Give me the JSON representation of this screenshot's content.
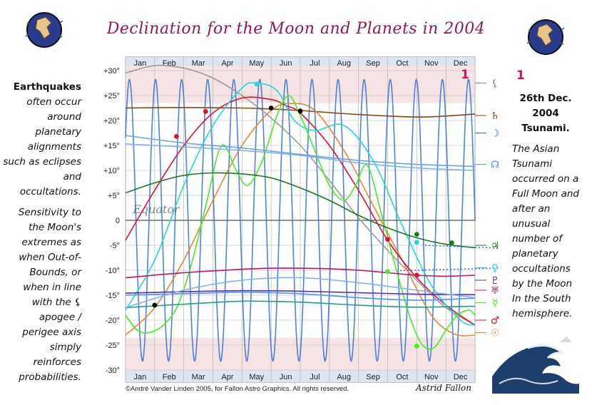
{
  "title": "Declination for the Moon and Planets in 2004",
  "left_text": {
    "p1_bold": "Earthquakes",
    "p1_rest": "often occur around planetary alignments such as eclipses and occultations.",
    "p2": "Sensitivity to the Moon's extremes as when Out-of-Bounds, or when in line with the",
    "p2_glyph": "⚸",
    "p2_end": "apogee / perigee axis simply reinforces probabilities."
  },
  "right_text": {
    "marker": "1",
    "date_bold": "26th Dec. 2004 Tsunami.",
    "body": "The Asian Tsunami occurred on a Full Moon and after an unusual number of planetary occultations by the Moon In the South hemisphere."
  },
  "copyright": "©André Vander Linden 2005, for Fallon Astro Graphics. All rights reserved.",
  "signature": "Astrid Fallon",
  "chart_data": {
    "type": "line",
    "title": "Declination for the Moon and Planets in 2004",
    "x_unit": "month of 2004 (0 = 1 Jan, 12 = 31 Dec)",
    "xlim": [
      0,
      12
    ],
    "ylim": [
      -31,
      31
    ],
    "y_ticks": [
      "+30°",
      "+25°",
      "+20°",
      "+15°",
      "+10°",
      "+5°",
      "0",
      "-5°",
      "-10°",
      "-15°",
      "-20°",
      "-25°",
      "-30°"
    ],
    "y_tick_values": [
      30,
      25,
      20,
      15,
      10,
      5,
      0,
      -5,
      -10,
      -15,
      -20,
      -25,
      -30
    ],
    "months": [
      "Jan",
      "Feb",
      "Mar",
      "Apr",
      "May",
      "Jun",
      "Jul",
      "Aug",
      "Sep",
      "Oct",
      "Nov",
      "Dec"
    ],
    "annotation": "Equator",
    "marker_label": "1",
    "grid": true,
    "moon": {
      "color": "#2f6fd6",
      "amplitude": 28.2,
      "cycles": 13.4,
      "phase": 0.1
    },
    "series": [
      {
        "glyph": "⚸",
        "color": "#9a9a9a",
        "x": [
          0,
          1,
          2,
          3,
          4,
          5,
          6,
          7,
          8,
          9,
          10,
          11,
          12
        ],
        "y": [
          29.5,
          31,
          30.5,
          28.5,
          25,
          20.5,
          15,
          8,
          0.5,
          -6,
          -12,
          -17.5,
          -21
        ]
      },
      {
        "glyph": "♄",
        "color": "#8b4513",
        "x": [
          0,
          2,
          4,
          5,
          6,
          8,
          10,
          11,
          12
        ],
        "y": [
          22.5,
          22.6,
          22.5,
          22.3,
          22,
          21.2,
          20.7,
          20.9,
          21.3
        ]
      },
      {
        "name": "Sun",
        "color": "#e8872a",
        "x": [
          0,
          1,
          2,
          3,
          4,
          5,
          5.7,
          6.5,
          7.5,
          8.5,
          9.5,
          10.5,
          11.3,
          12
        ],
        "y": [
          -23,
          -17.5,
          -8,
          4,
          15,
          22,
          23.4,
          22,
          14,
          3,
          -8,
          -19,
          -22.8,
          -23
        ]
      },
      {
        "name": "Mars",
        "color": "#dd1030",
        "x": [
          0,
          1,
          2,
          3,
          4,
          5,
          5.5,
          6,
          7,
          8,
          9,
          10,
          11,
          12
        ],
        "y": [
          -4,
          6,
          15,
          21.5,
          24.5,
          24.2,
          23,
          21.5,
          15,
          6,
          -4,
          -11.5,
          -17,
          -21
        ]
      },
      {
        "name": "Venus",
        "color": "#20d8d8",
        "x": [
          0,
          1,
          2,
          3,
          4,
          4.5,
          5.2,
          5.8,
          6.5,
          7.5,
          8.5,
          9.5,
          10.5,
          11.5,
          12
        ],
        "y": [
          -18,
          -8,
          7,
          19,
          26.5,
          27.5,
          26,
          20,
          18,
          19,
          12,
          -1,
          -13,
          -20,
          -21
        ]
      },
      {
        "name": "Mercury",
        "color": "#44ee22",
        "x": [
          0,
          0.4,
          0.8,
          1.3,
          1.8,
          2.3,
          2.8,
          3.3,
          3.8,
          4.2,
          4.7,
          5.2,
          5.6,
          6,
          6.5,
          7,
          7.5,
          7.9,
          8.3,
          8.8,
          9.3,
          9.8,
          10.2,
          10.6,
          11,
          11.4,
          11.8,
          12
        ],
        "y": [
          -19,
          -22,
          -22.5,
          -21,
          -17,
          -8,
          4,
          15,
          10,
          7,
          12,
          21,
          25,
          21,
          14,
          7,
          4,
          7,
          11,
          1,
          -10,
          -20,
          -25,
          -25.5,
          -22,
          -19,
          -18,
          -19
        ]
      },
      {
        "name": "Jupiter",
        "color": "#1a7a1a",
        "x": [
          0,
          1,
          2,
          3,
          4,
          5,
          6,
          7,
          8,
          9,
          10,
          11,
          12
        ],
        "y": [
          5.5,
          7.5,
          9,
          9.5,
          9.3,
          8.5,
          6.5,
          4,
          1,
          -1.5,
          -3.5,
          -4.8,
          -5.5
        ]
      },
      {
        "name": "Uranus",
        "color": "#c0146a",
        "x": [
          0,
          2,
          4,
          5,
          6,
          7,
          8,
          9,
          10,
          11,
          12
        ],
        "y": [
          -11.5,
          -10.5,
          -9.8,
          -9.6,
          -9.6,
          -9.7,
          -10,
          -10.5,
          -11,
          -11.2,
          -11
        ]
      },
      {
        "name": "Neptune",
        "color": "#5a2db5",
        "x": [
          0,
          2,
          4,
          6,
          8,
          10,
          12
        ],
        "y": [
          -14.6,
          -14.3,
          -14.1,
          -14.2,
          -14.5,
          -14.8,
          -14.9
        ]
      },
      {
        "name": "Pluto",
        "color": "#4a92ff",
        "x": [
          0,
          2,
          4,
          6,
          8,
          10,
          12
        ],
        "y": [
          -15,
          -14.7,
          -14.4,
          -14.7,
          -15.5,
          -16,
          -15.6
        ]
      },
      {
        "name": "Chiron",
        "color": "#1aa090",
        "x": [
          0,
          2,
          4,
          6,
          8,
          10,
          12
        ],
        "y": [
          -17.5,
          -16.8,
          -16.2,
          -16.4,
          -17,
          -17.4,
          -17.2
        ]
      },
      {
        "name": "Node",
        "color": "#6aa2e8",
        "x": [
          0,
          2,
          4,
          6,
          8,
          10,
          12
        ],
        "y": [
          17,
          15.5,
          14.5,
          13.2,
          12,
          11.2,
          10.8
        ]
      },
      {
        "name": "ref-upper",
        "color": "#7fb0ea",
        "x": [
          0,
          2,
          4,
          6,
          8,
          10,
          12
        ],
        "y": [
          15.3,
          14.7,
          14,
          13,
          11.5,
          10.5,
          10
        ]
      },
      {
        "name": "ref-lower",
        "color": "#7fb0ea",
        "x": [
          0,
          2,
          4,
          6,
          8,
          10,
          12
        ],
        "y": [
          -17.5,
          -14,
          -12,
          -11.5,
          -12.5,
          -14,
          -15.5
        ]
      }
    ],
    "right_glyphs": [
      {
        "glyph": "⚸",
        "color": "#888888",
        "y": 27.5
      },
      {
        "glyph": "♄",
        "color": "#8b4513",
        "y": 21
      },
      {
        "glyph": "☽",
        "color": "#2f6fd6",
        "y": 17.5
      },
      {
        "glyph": "☊",
        "color": "#4a92ff",
        "y": 11.2
      },
      {
        "glyph": "♃",
        "color": "#1a7a1a",
        "y": -5
      },
      {
        "glyph": "♀",
        "color": "#20d8d8",
        "y": -9.5
      },
      {
        "glyph": "♇",
        "color": "#5a2db5",
        "y": -12
      },
      {
        "glyph": "♅",
        "color": "#c0146a",
        "y": -14
      },
      {
        "glyph": "☿",
        "color": "#44ee22",
        "y": -16.5
      },
      {
        "glyph": "♂",
        "color": "#dd1030",
        "y": -20
      },
      {
        "glyph": "☉",
        "color": "#e8872a",
        "y": -22.5
      }
    ],
    "dots": [
      {
        "x": 1.75,
        "y": 16.8,
        "color": "#dd1030"
      },
      {
        "x": 2.75,
        "y": 21.8,
        "color": "#dd1030"
      },
      {
        "x": 5.0,
        "y": 22.5,
        "color": "#000000"
      },
      {
        "x": 6.0,
        "y": 21.9,
        "color": "#000000"
      },
      {
        "x": 4.5,
        "y": 27.3,
        "color": "#20d8d8"
      },
      {
        "x": 1.0,
        "y": -17,
        "color": "#000000"
      },
      {
        "x": 9.0,
        "y": -3.8,
        "color": "#dd1030"
      },
      {
        "x": 9.0,
        "y": -10.3,
        "color": "#44ee22"
      },
      {
        "x": 10.0,
        "y": -2.8,
        "color": "#1a7a1a"
      },
      {
        "x": 10.0,
        "y": -4.4,
        "color": "#20d8d8"
      },
      {
        "x": 10.0,
        "y": -11,
        "color": "#dd1030"
      },
      {
        "x": 10.0,
        "y": -25.2,
        "color": "#44ee22"
      },
      {
        "x": 11.2,
        "y": -4.5,
        "color": "#1a7a1a"
      }
    ]
  }
}
